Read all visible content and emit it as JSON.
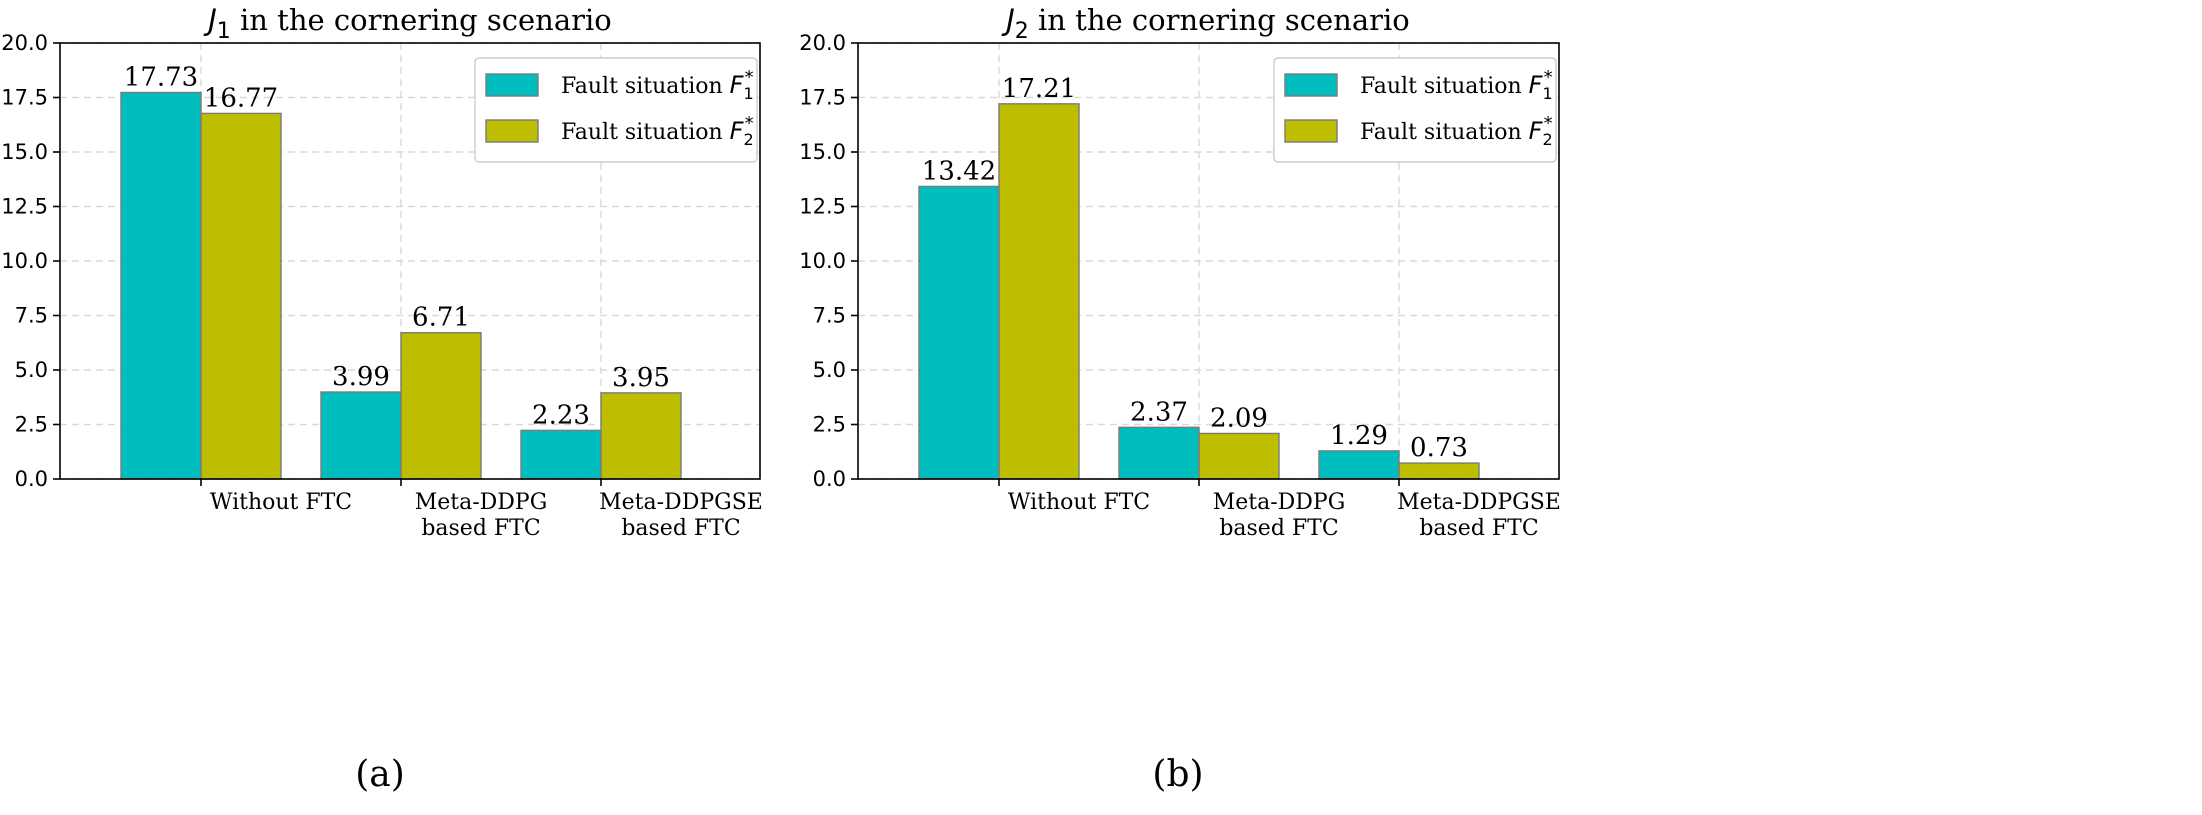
{
  "chart_data": [
    {
      "type": "bar",
      "panel_label": "(a)",
      "title_symbol": "J",
      "title_subscript": "1",
      "title_rest": " in the cornering scenario",
      "categories": [
        [
          "Without FTC"
        ],
        [
          "Meta-DDPG",
          "based FTC"
        ],
        [
          "Meta-DDPGSE",
          "based FTC"
        ]
      ],
      "series": [
        {
          "name": "Fault situation F1*",
          "legend_text": "Fault situation ",
          "legend_symbol": "F",
          "legend_sub": "1",
          "legend_sup": "*",
          "color": "#00bebe",
          "values": [
            17.73,
            3.99,
            2.23
          ],
          "labels": [
            "17.73",
            "3.99",
            "2.23"
          ]
        },
        {
          "name": "Fault situation F2*",
          "legend_text": "Fault situation ",
          "legend_symbol": "F",
          "legend_sub": "2",
          "legend_sup": "*",
          "color": "#bebe00",
          "values": [
            16.77,
            6.71,
            3.95
          ],
          "labels": [
            "16.77",
            "6.71",
            "3.95"
          ]
        }
      ],
      "ylim": [
        0,
        20
      ],
      "yticks": [
        "0.0",
        "2.5",
        "5.0",
        "7.5",
        "10.0",
        "12.5",
        "15.0",
        "17.5",
        "20.0"
      ],
      "grid": true,
      "legend_position": "top-right"
    },
    {
      "type": "bar",
      "panel_label": "(b)",
      "title_symbol": "J",
      "title_subscript": "2",
      "title_rest": " in the cornering scenario",
      "categories": [
        [
          "Without FTC"
        ],
        [
          "Meta-DDPG",
          "based FTC"
        ],
        [
          "Meta-DDPGSE",
          "based FTC"
        ]
      ],
      "series": [
        {
          "name": "Fault situation F1*",
          "legend_text": "Fault situation ",
          "legend_symbol": "F",
          "legend_sub": "1",
          "legend_sup": "*",
          "color": "#00bebe",
          "values": [
            13.42,
            2.37,
            1.29
          ],
          "labels": [
            "13.42",
            "2.37",
            "1.29"
          ]
        },
        {
          "name": "Fault situation F2*",
          "legend_text": "Fault situation ",
          "legend_symbol": "F",
          "legend_sub": "2",
          "legend_sup": "*",
          "color": "#bebe00",
          "values": [
            17.21,
            2.09,
            0.73
          ],
          "labels": [
            "17.21",
            "2.09",
            "0.73"
          ]
        }
      ],
      "ylim": [
        0,
        20
      ],
      "yticks": [
        "0.0",
        "2.5",
        "5.0",
        "7.5",
        "10.0",
        "12.5",
        "15.0",
        "17.5",
        "20.0"
      ],
      "grid": true,
      "legend_position": "top-right"
    }
  ]
}
